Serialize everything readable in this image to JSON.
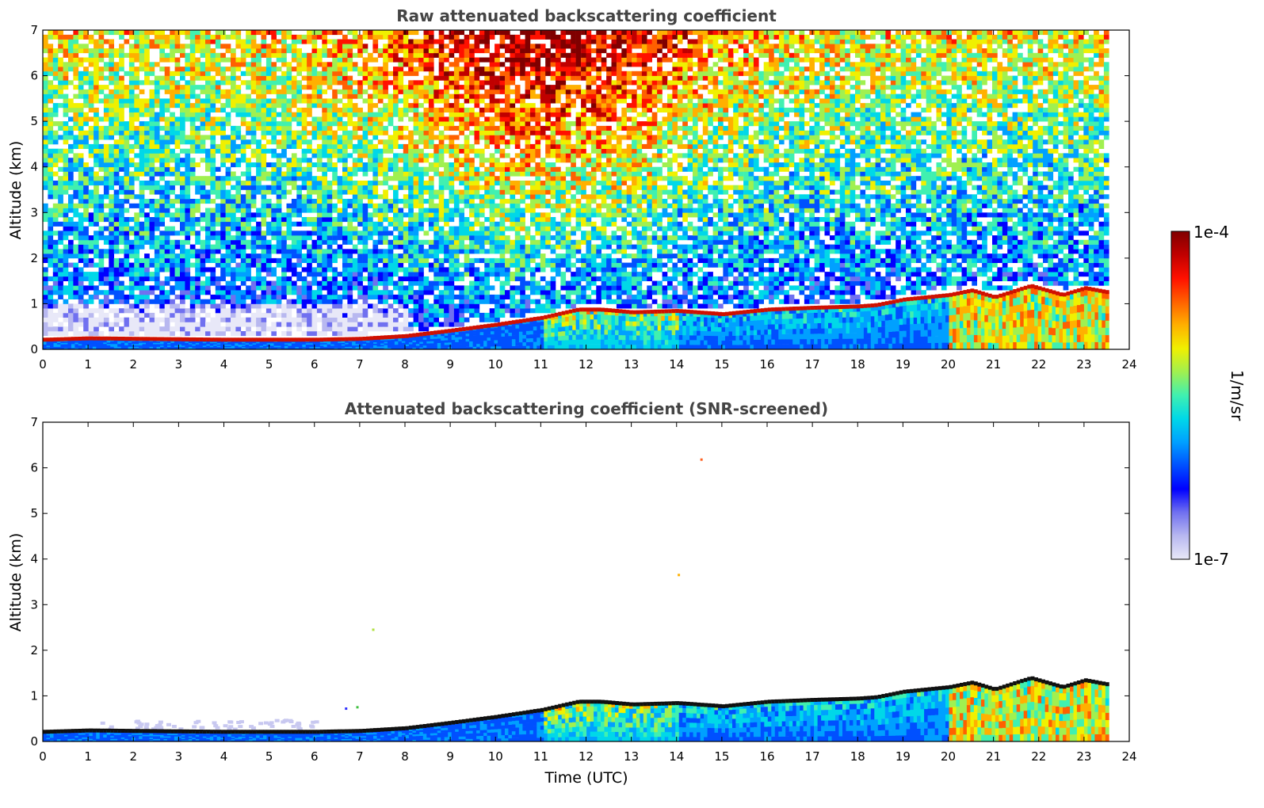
{
  "chart_data": [
    {
      "type": "heatmap",
      "title": "Raw attenuated backscattering coefficient",
      "xlabel": "",
      "ylabel": "Altitude (km)",
      "xlim": [
        0,
        24
      ],
      "ylim": [
        0,
        7
      ],
      "xticks": [
        "0",
        "1",
        "2",
        "3",
        "4",
        "5",
        "6",
        "7",
        "8",
        "9",
        "10",
        "11",
        "12",
        "13",
        "14",
        "15",
        "16",
        "17",
        "18",
        "19",
        "20",
        "21",
        "22",
        "23",
        "24"
      ],
      "yticks": [
        "0",
        "1",
        "2",
        "3",
        "4",
        "5",
        "6",
        "7"
      ],
      "data_extent_x": [
        0,
        23.55
      ],
      "description_of_fields": "noisy background increasing with altitude, strongest 7-15 UTC; aerosol layer near surface",
      "boundary_layer_top_km": [
        [
          0,
          0.22
        ],
        [
          1,
          0.25
        ],
        [
          2,
          0.24
        ],
        [
          3,
          0.23
        ],
        [
          4,
          0.22
        ],
        [
          5,
          0.22
        ],
        [
          6,
          0.22
        ],
        [
          7,
          0.24
        ],
        [
          8,
          0.3
        ],
        [
          9,
          0.42
        ],
        [
          10,
          0.55
        ],
        [
          11,
          0.7
        ],
        [
          11.8,
          0.88
        ],
        [
          12.3,
          0.88
        ],
        [
          13,
          0.82
        ],
        [
          14,
          0.85
        ],
        [
          15,
          0.78
        ],
        [
          16,
          0.88
        ],
        [
          17,
          0.92
        ],
        [
          18,
          0.95
        ],
        [
          18.4,
          0.98
        ],
        [
          19,
          1.1
        ],
        [
          20,
          1.2
        ],
        [
          20.5,
          1.3
        ],
        [
          21,
          1.15
        ],
        [
          21.8,
          1.4
        ],
        [
          22.5,
          1.2
        ],
        [
          23,
          1.35
        ],
        [
          23.55,
          1.25
        ]
      ]
    },
    {
      "type": "heatmap",
      "title": "Attenuated backscattering coefficient (SNR-screened)",
      "xlabel": "Time (UTC)",
      "ylabel": "Altitude (km)",
      "xlim": [
        0,
        24
      ],
      "ylim": [
        0,
        7
      ],
      "xticks": [
        "0",
        "1",
        "2",
        "3",
        "4",
        "5",
        "6",
        "7",
        "8",
        "9",
        "10",
        "11",
        "12",
        "13",
        "14",
        "15",
        "16",
        "17",
        "18",
        "19",
        "20",
        "21",
        "22",
        "23",
        "24"
      ],
      "yticks": [
        "0",
        "1",
        "2",
        "3",
        "4",
        "5",
        "6",
        "7"
      ],
      "data_extent_x": [
        0,
        23.55
      ],
      "boundary_layer_top_km": [
        [
          0,
          0.22
        ],
        [
          1,
          0.25
        ],
        [
          2,
          0.24
        ],
        [
          3,
          0.23
        ],
        [
          4,
          0.22
        ],
        [
          5,
          0.22
        ],
        [
          6,
          0.22
        ],
        [
          7,
          0.24
        ],
        [
          8,
          0.3
        ],
        [
          9,
          0.42
        ],
        [
          10,
          0.55
        ],
        [
          11,
          0.7
        ],
        [
          11.8,
          0.88
        ],
        [
          12.3,
          0.88
        ],
        [
          13,
          0.82
        ],
        [
          14,
          0.85
        ],
        [
          15,
          0.78
        ],
        [
          16,
          0.88
        ],
        [
          17,
          0.92
        ],
        [
          18,
          0.95
        ],
        [
          18.4,
          0.98
        ],
        [
          19,
          1.1
        ],
        [
          20,
          1.2
        ],
        [
          20.5,
          1.3
        ],
        [
          21,
          1.15
        ],
        [
          21.8,
          1.4
        ],
        [
          22.5,
          1.2
        ],
        [
          23,
          1.35
        ],
        [
          23.55,
          1.25
        ]
      ],
      "isolated_points": [
        {
          "x": 14.55,
          "y": 6.18,
          "color": "#ff6020"
        },
        {
          "x": 14.05,
          "y": 3.65,
          "color": "#ffb000"
        },
        {
          "x": 7.3,
          "y": 2.45,
          "color": "#b0e040"
        },
        {
          "x": 6.7,
          "y": 0.72,
          "color": "#3030ff"
        },
        {
          "x": 6.95,
          "y": 0.75,
          "color": "#40c040"
        }
      ]
    }
  ],
  "colorbar": {
    "label": "1/m/sr",
    "max_label": "1e-4",
    "min_label": "1e-7",
    "scale": "log",
    "colormap": [
      "#e8e8f8",
      "#b8b8f0",
      "#7070f0",
      "#0000ff",
      "#0050ff",
      "#00a0ff",
      "#00d8e8",
      "#40f0b0",
      "#a0f050",
      "#f0f000",
      "#ffb000",
      "#ff6000",
      "#ff1000",
      "#c00000",
      "#800000"
    ]
  }
}
